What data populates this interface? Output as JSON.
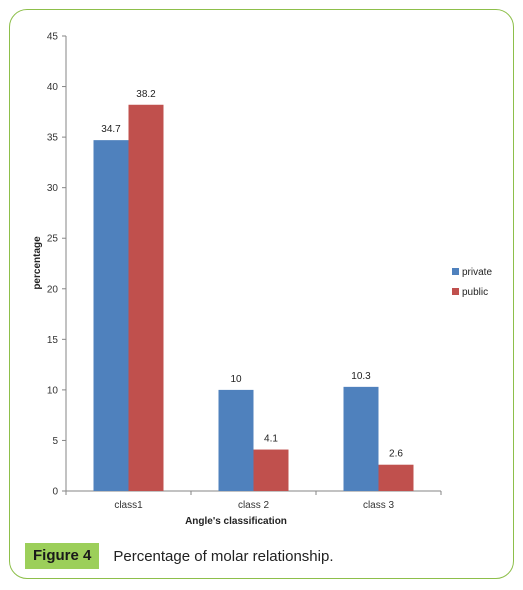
{
  "chart_data": {
    "type": "bar",
    "categories": [
      "class1",
      "class 2",
      "class 3"
    ],
    "series": [
      {
        "name": "private",
        "values": [
          34.7,
          10,
          10.3
        ],
        "color": "#4f81bd"
      },
      {
        "name": "public",
        "values": [
          38.2,
          4.1,
          2.6
        ],
        "color": "#c0504d"
      }
    ],
    "data_labels": [
      [
        "34.7",
        "10",
        "10.3"
      ],
      [
        "38.2",
        "4.1",
        "2.6"
      ]
    ],
    "xlabel": "Angle's classification",
    "ylabel": "percentage",
    "ylim": [
      0,
      45
    ],
    "yticks": [
      0,
      5,
      10,
      15,
      20,
      25,
      30,
      35,
      40,
      45
    ],
    "grid": false,
    "legend_position": "right"
  },
  "caption": {
    "figure_label": "Figure 4",
    "text": "Percentage of molar relationship."
  },
  "colors": {
    "frame_border": "#8dbf4a",
    "figure_badge": "#9ccf5a"
  }
}
